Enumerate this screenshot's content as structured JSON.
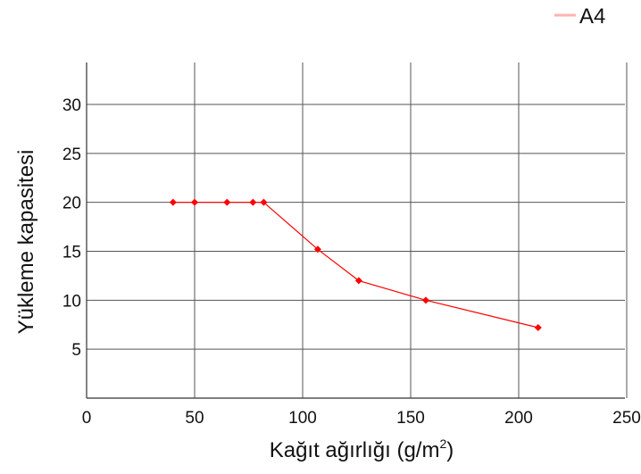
{
  "chart_data": {
    "type": "line",
    "xlabel": "Kağıt ağırlığı (g/m²)",
    "xlabel_parts": {
      "prefix": "Kağıt ağırlığı (g/m",
      "sup": "2",
      "suffix": ")"
    },
    "ylabel": "Yükleme kapasitesi",
    "xlim": [
      0,
      250
    ],
    "ylim": [
      0,
      35
    ],
    "xticks": [
      0,
      50,
      100,
      150,
      200,
      250
    ],
    "yticks": [
      5,
      10,
      15,
      20,
      25,
      30
    ],
    "grid": true,
    "legend_position": "top-right",
    "series": [
      {
        "name": "A4",
        "color": "#ff0000",
        "legend_color": "#ffb3b3",
        "marker": "diamond",
        "x": [
          40,
          50,
          65,
          77,
          82,
          107,
          126,
          157,
          209
        ],
        "y": [
          20,
          20,
          20,
          20,
          20,
          15.2,
          12,
          10,
          7.2
        ]
      }
    ]
  }
}
